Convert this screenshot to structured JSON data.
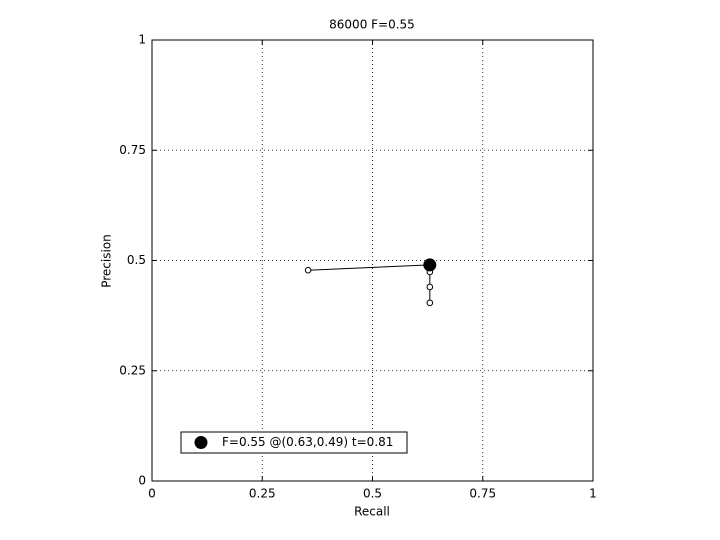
{
  "chart_data": {
    "type": "line",
    "title": "86000 F=0.55",
    "xlabel": "Recall",
    "ylabel": "Precision",
    "xlim": [
      0,
      1
    ],
    "ylim": [
      0,
      1
    ],
    "xticks": [
      0,
      0.25,
      0.5,
      0.75,
      1
    ],
    "yticks": [
      0,
      0.25,
      0.5,
      0.75,
      1
    ],
    "grid": true,
    "legend": "lower left",
    "series": [
      {
        "color": "#000000",
        "marker": "open-circle",
        "line": true,
        "x": [
          0.354,
          0.63,
          0.63,
          0.63,
          0.63
        ],
        "values": [
          0.478,
          0.49,
          0.474,
          0.44,
          0.404
        ]
      },
      {
        "name": "F=0.55 @(0.63,0.49) t=0.81",
        "color": "#000000",
        "marker": "filled-circle",
        "line": false,
        "x": [
          0.63
        ],
        "values": [
          0.49
        ]
      }
    ]
  }
}
